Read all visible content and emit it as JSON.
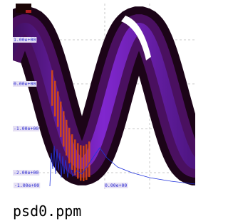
{
  "image": {
    "y_tick_labels": [
      "1.00e+00",
      "0.00e+00",
      "-1.00e+00",
      "-2.00e+00"
    ],
    "x_tick_labels": [
      "-1.00e+00",
      "0.00e+00"
    ]
  },
  "caption": "psd0.ppm"
}
